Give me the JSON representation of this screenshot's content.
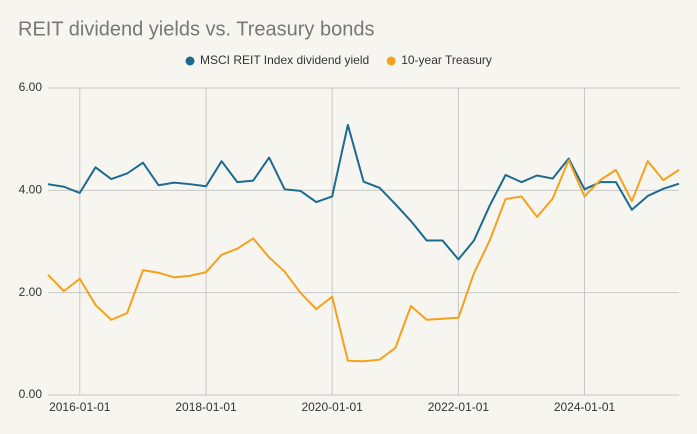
{
  "chart_data": {
    "type": "line",
    "title": "REIT dividend yields vs. Treasury bonds",
    "x": [
      "2015-07-01",
      "2015-10-01",
      "2016-01-01",
      "2016-04-01",
      "2016-07-01",
      "2016-10-01",
      "2017-01-01",
      "2017-04-01",
      "2017-07-01",
      "2017-10-01",
      "2018-01-01",
      "2018-04-01",
      "2018-07-01",
      "2018-10-01",
      "2019-01-01",
      "2019-04-01",
      "2019-07-01",
      "2019-10-01",
      "2020-01-01",
      "2020-04-01",
      "2020-07-01",
      "2020-10-01",
      "2021-01-01",
      "2021-04-01",
      "2021-07-01",
      "2021-10-01",
      "2022-01-01",
      "2022-04-01",
      "2022-07-01",
      "2022-10-01",
      "2023-01-01",
      "2023-04-01",
      "2023-07-01",
      "2023-10-01",
      "2024-01-01",
      "2024-04-01",
      "2024-07-01",
      "2024-10-01",
      "2025-01-01",
      "2025-04-01",
      "2025-07-01"
    ],
    "series": [
      {
        "name": "MSCI REIT Index dividend yield",
        "color": "#1a6b8f",
        "values": [
          4.12,
          4.07,
          3.95,
          4.45,
          4.22,
          4.33,
          4.54,
          4.1,
          4.15,
          4.12,
          4.08,
          4.57,
          4.16,
          4.19,
          4.64,
          4.02,
          3.99,
          3.77,
          3.88,
          5.28,
          4.17,
          4.05,
          3.73,
          3.4,
          3.02,
          3.02,
          2.65,
          3.02,
          3.7,
          4.3,
          4.16,
          4.29,
          4.23,
          4.62,
          4.02,
          4.16,
          4.16,
          3.62,
          3.89,
          4.03,
          4.13
        ]
      },
      {
        "name": "10-year Treasury",
        "color": "#f5a11c",
        "values": [
          2.35,
          2.03,
          2.27,
          1.76,
          1.47,
          1.6,
          2.44,
          2.39,
          2.3,
          2.33,
          2.4,
          2.74,
          2.86,
          3.06,
          2.69,
          2.41,
          2.0,
          1.68,
          1.92,
          0.67,
          0.66,
          0.69,
          0.92,
          1.74,
          1.47,
          1.49,
          1.51,
          2.38,
          3.02,
          3.83,
          3.88,
          3.48,
          3.84,
          4.59,
          3.88,
          4.2,
          4.4,
          3.79,
          4.57,
          4.2,
          4.4
        ]
      }
    ],
    "xlim": [
      "2015-07-01",
      "2025-07-01"
    ],
    "xticks": [
      "2016-01-01",
      "2018-01-01",
      "2020-01-01",
      "2022-01-01",
      "2024-01-01"
    ],
    "ylim": [
      0,
      6
    ],
    "yticks": [
      {
        "value": 0,
        "label": "0.00"
      },
      {
        "value": 2,
        "label": "2.00"
      },
      {
        "value": 4,
        "label": "4.00"
      },
      {
        "value": 6,
        "label": "6.00"
      }
    ],
    "grid": true,
    "legend": "top"
  }
}
